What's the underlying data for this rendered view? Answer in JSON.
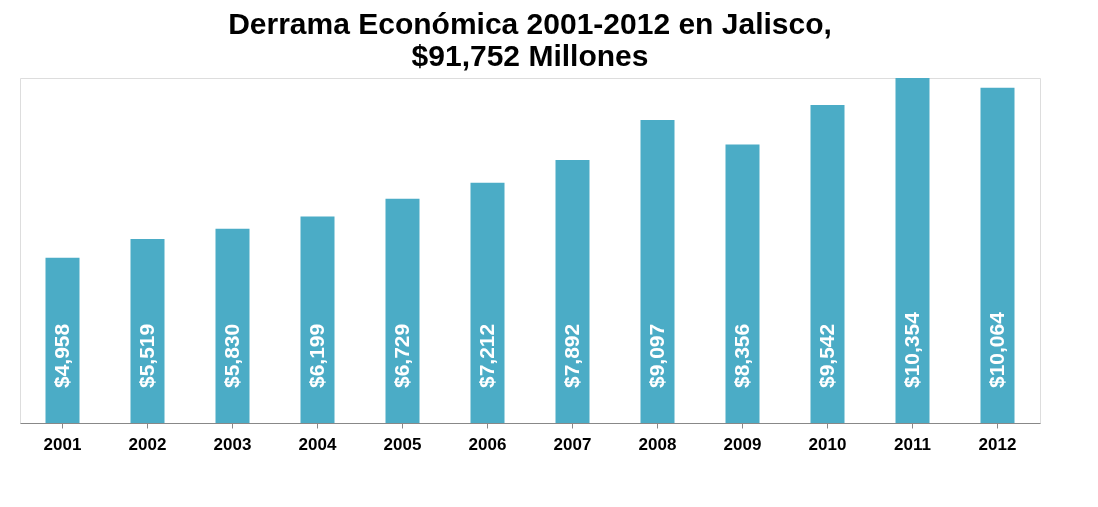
{
  "chart_data": {
    "type": "bar",
    "title": "Derrama Económica 2001-2012 en Jalisco,\n$91,752 Millones",
    "categories": [
      "2001",
      "2002",
      "2003",
      "2004",
      "2005",
      "2006",
      "2007",
      "2008",
      "2009",
      "2010",
      "2011",
      "2012"
    ],
    "values": [
      4958,
      5519,
      5830,
      6199,
      6729,
      7212,
      7892,
      9097,
      8356,
      9542,
      10354,
      10064
    ],
    "value_labels": [
      "$4,958",
      "$5,519",
      "$5,830",
      "$6,199",
      "$6,729",
      "$7,212",
      "$7,892",
      "$9,097",
      "$8,356",
      "$9,542",
      "$10,354",
      "$10,064"
    ],
    "color": "#4bacc6",
    "grid": false
  }
}
